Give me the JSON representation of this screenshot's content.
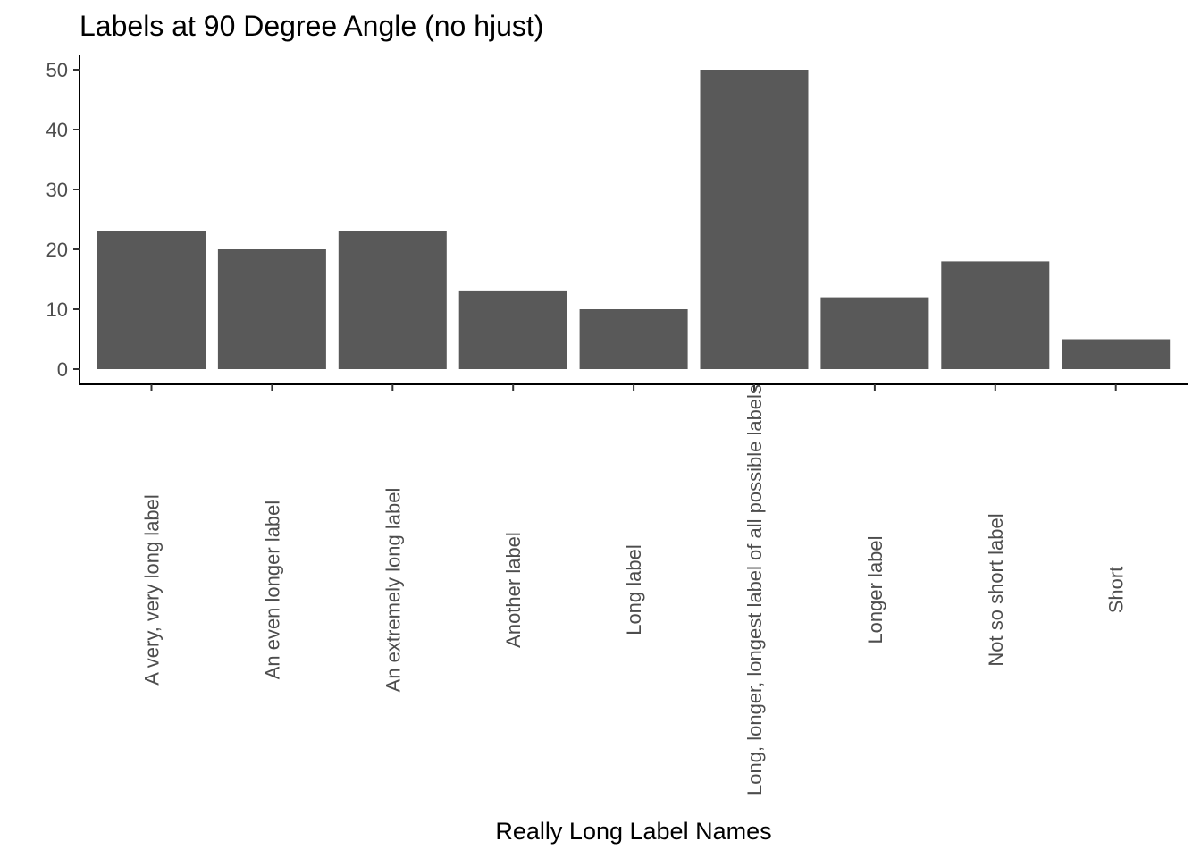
{
  "chart_data": {
    "type": "bar",
    "title": "Labels at 90 Degree Angle (no hjust)",
    "xlabel": "Really Long Label Names",
    "ylabel": "",
    "categories": [
      "A very, very long label",
      "An even longer label",
      "An extremely long label",
      "Another label",
      "Long label",
      "Long, longer, longest label of all possible labels",
      "Longer label",
      "Not so short label",
      "Short"
    ],
    "values": [
      23,
      20,
      23,
      13,
      10,
      50,
      12,
      18,
      5
    ],
    "ylim": [
      0,
      50
    ],
    "yticks": [
      0,
      10,
      20,
      30,
      40,
      50
    ],
    "x_tick_label_angle": 90,
    "grid": false,
    "legend": "none",
    "colors": {
      "bar": "#595959",
      "axis": "#000000",
      "tick_label": "#4d4d4d"
    }
  }
}
